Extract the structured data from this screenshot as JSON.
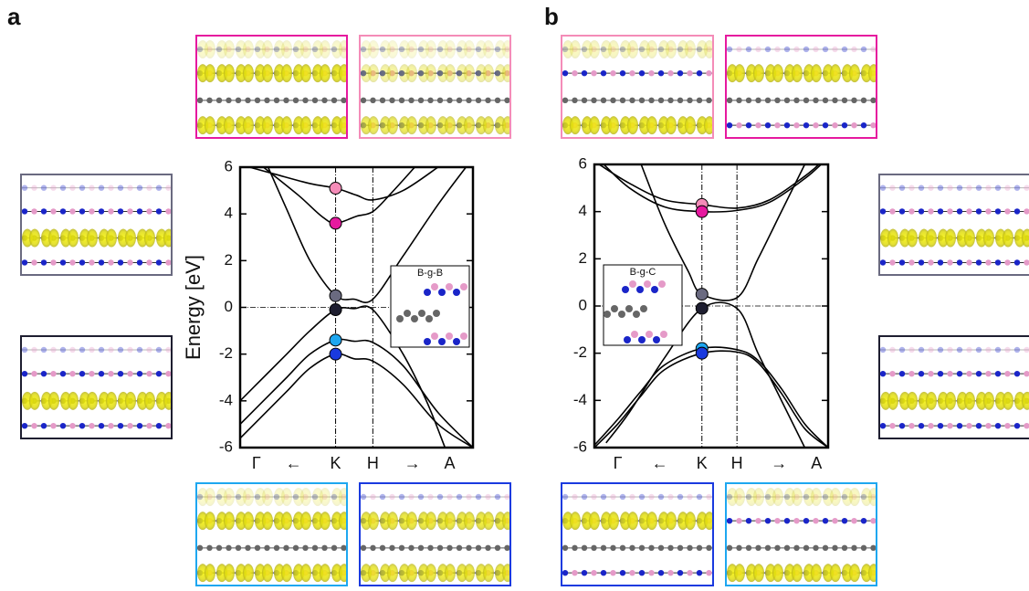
{
  "chart_data": [
    {
      "type": "line",
      "panel_label": "a",
      "y_label": "Energy [eV]",
      "inset_label": "B-g-B",
      "xlim": [
        0,
        1
      ],
      "ylim": [
        -6,
        6
      ],
      "yticks": [
        -6,
        -4,
        -2,
        0,
        2,
        4,
        6
      ],
      "xticks": [
        {
          "value": 0.07,
          "label": "Γ"
        },
        {
          "value": 0.23,
          "label": "←"
        },
        {
          "value": 0.41,
          "label": "K"
        },
        {
          "value": 0.57,
          "label": "H"
        },
        {
          "value": 0.74,
          "label": "→"
        },
        {
          "value": 0.9,
          "label": "A"
        }
      ],
      "vlines": [
        0.41,
        0.57
      ],
      "hline": 0,
      "line_color": "#000000",
      "series": [
        {
          "x": [
            0.04,
            0.15,
            0.3,
            0.41,
            0.5,
            0.57,
            0.7,
            0.85
          ],
          "values": [
            6,
            5.7,
            5.3,
            5.1,
            4.8,
            4.6,
            5.0,
            6
          ]
        },
        {
          "x": [
            0.1,
            0.25,
            0.35,
            0.41,
            0.5,
            0.57,
            0.65,
            0.75
          ],
          "values": [
            6,
            4.8,
            3.9,
            3.6,
            3.9,
            4.1,
            4.9,
            6
          ]
        },
        {
          "x": [
            0.12,
            0.2,
            0.3,
            0.41,
            0.49,
            0.57,
            0.7,
            0.85,
            0.97
          ],
          "values": [
            6,
            4.2,
            2,
            0.5,
            0.35,
            0.35,
            2.2,
            4.4,
            6
          ]
        },
        {
          "x": [
            0,
            0.1,
            0.2,
            0.3,
            0.41,
            0.49,
            0.57,
            0.7,
            0.8,
            0.88
          ],
          "values": [
            -4,
            -3,
            -2,
            -1,
            -0.1,
            -0.05,
            -0.1,
            -2,
            -4,
            -6
          ]
        },
        {
          "x": [
            0,
            0.1,
            0.2,
            0.3,
            0.41,
            0.49,
            0.57,
            0.7,
            0.85,
            1
          ],
          "values": [
            -5,
            -4,
            -3,
            -2,
            -1.4,
            -1.45,
            -1.5,
            -2.5,
            -4.5,
            -6
          ]
        },
        {
          "x": [
            0,
            0.1,
            0.2,
            0.3,
            0.41,
            0.49,
            0.57,
            0.7,
            0.85,
            1
          ],
          "values": [
            -5.6,
            -4.6,
            -3.6,
            -2.6,
            -2.0,
            -2.2,
            -2.3,
            -3.3,
            -5,
            -6
          ]
        }
      ],
      "points": [
        {
          "x": 0.41,
          "value": 5.1,
          "color": "#f48cb8"
        },
        {
          "x": 0.41,
          "value": 3.6,
          "color": "#e6199f"
        },
        {
          "x": 0.41,
          "value": 0.5,
          "color": "#6a6a80"
        },
        {
          "x": 0.41,
          "value": -0.1,
          "color": "#1e1e30"
        },
        {
          "x": 0.41,
          "value": -1.4,
          "color": "#1ea7f0"
        },
        {
          "x": 0.41,
          "value": -2.0,
          "color": "#1a3adf"
        }
      ]
    },
    {
      "type": "line",
      "panel_label": "b",
      "inset_label": "B-g-C",
      "xlim": [
        0,
        1
      ],
      "ylim": [
        -6,
        6
      ],
      "yticks": [
        -6,
        -4,
        -2,
        0,
        2,
        4,
        6
      ],
      "xticks": [
        {
          "value": 0.1,
          "label": "Γ"
        },
        {
          "value": 0.28,
          "label": "←"
        },
        {
          "value": 0.46,
          "label": "K"
        },
        {
          "value": 0.61,
          "label": "H"
        },
        {
          "value": 0.79,
          "label": "→"
        },
        {
          "value": 0.95,
          "label": "A"
        }
      ],
      "vlines": [
        0.46,
        0.61
      ],
      "hline": 0,
      "line_color": "#000000",
      "series": [
        {
          "x": [
            0.02,
            0.15,
            0.3,
            0.46,
            0.61,
            0.75,
            0.9,
            0.96
          ],
          "values": [
            6,
            5.2,
            4.5,
            4.3,
            4.15,
            4.5,
            5.5,
            6
          ]
        },
        {
          "x": [
            0.04,
            0.15,
            0.3,
            0.46,
            0.61,
            0.75,
            0.9,
            0.97
          ],
          "values": [
            6,
            5,
            4.2,
            4.0,
            4.05,
            4.4,
            5.4,
            6
          ]
        },
        {
          "x": [
            0.2,
            0.3,
            0.4,
            0.46,
            0.61,
            0.7,
            0.8,
            0.9
          ],
          "values": [
            6,
            3.5,
            1.5,
            0.5,
            0.35,
            2,
            4,
            6
          ]
        },
        {
          "x": [
            0.05,
            0.15,
            0.3,
            0.46,
            0.61,
            0.7,
            0.8,
            0.9
          ],
          "values": [
            -5.8,
            -4.5,
            -2.2,
            -0.1,
            -0.1,
            -2,
            -4,
            -6
          ]
        },
        {
          "x": [
            0,
            0.1,
            0.2,
            0.3,
            0.46,
            0.61,
            0.7,
            0.8,
            0.9,
            1
          ],
          "values": [
            -5.9,
            -4.8,
            -3.6,
            -2.5,
            -1.8,
            -1.85,
            -2.3,
            -3.5,
            -5,
            -6
          ]
        },
        {
          "x": [
            0,
            0.1,
            0.2,
            0.3,
            0.46,
            0.61,
            0.7,
            0.8,
            0.9,
            1
          ],
          "values": [
            -6,
            -5,
            -3.8,
            -2.7,
            -2.0,
            -1.95,
            -2.4,
            -3.7,
            -5.2,
            -6
          ]
        }
      ],
      "points": [
        {
          "x": 0.46,
          "value": 4.3,
          "color": "#f48cb8"
        },
        {
          "x": 0.46,
          "value": 4.0,
          "color": "#e6199f"
        },
        {
          "x": 0.46,
          "value": 0.5,
          "color": "#6a6a80"
        },
        {
          "x": 0.46,
          "value": -0.1,
          "color": "#1e1e30"
        },
        {
          "x": 0.46,
          "value": -1.8,
          "color": "#1ea7f0"
        },
        {
          "x": 0.46,
          "value": -2.0,
          "color": "#1a3adf"
        }
      ]
    }
  ]
}
